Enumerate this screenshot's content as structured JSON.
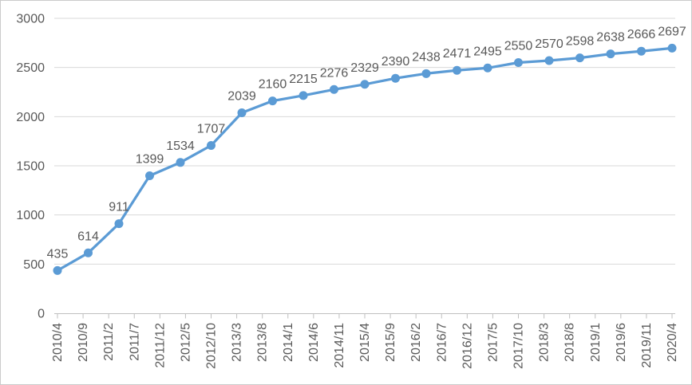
{
  "chart_data": {
    "type": "line",
    "title": "",
    "legend": "none",
    "grid": "horizontal",
    "data_labels_visible": true,
    "series": [
      {
        "name": "",
        "color": "#5B9BD5",
        "values": [
          435,
          614,
          911,
          1399,
          1534,
          1707,
          2039,
          2160,
          2215,
          2276,
          2329,
          2390,
          2438,
          2471,
          2495,
          2550,
          2570,
          2598,
          2638,
          2666,
          2697
        ]
      }
    ],
    "x_axis": {
      "tick_labels": [
        "2010/4",
        "2010/9",
        "2011/2",
        "2011/7",
        "2011/12",
        "2012/5",
        "2012/10",
        "2013/3",
        "2013/8",
        "2014/1",
        "2014/6",
        "2014/11",
        "2015/4",
        "2015/9",
        "2016/2",
        "2016/7",
        "2016/12",
        "2017/5",
        "2017/10",
        "2018/3",
        "2018/8",
        "2019/1",
        "2019/6",
        "2019/11",
        "2020/4"
      ],
      "tick_interval_months": 5,
      "point_interval_months": 6,
      "label_rotation_degrees": -90
    },
    "y_axis": {
      "min": 0,
      "max": 3000,
      "step": 500,
      "tick_labels": [
        "0",
        "500",
        "1000",
        "1500",
        "2000",
        "2500",
        "3000"
      ]
    },
    "colors": {
      "line": "#5B9BD5",
      "gridline": "#D9D9D9",
      "axis": "#BFBFBF",
      "text": "#595959",
      "background": "#FFFFFF",
      "border": "#CBCBCB"
    }
  }
}
